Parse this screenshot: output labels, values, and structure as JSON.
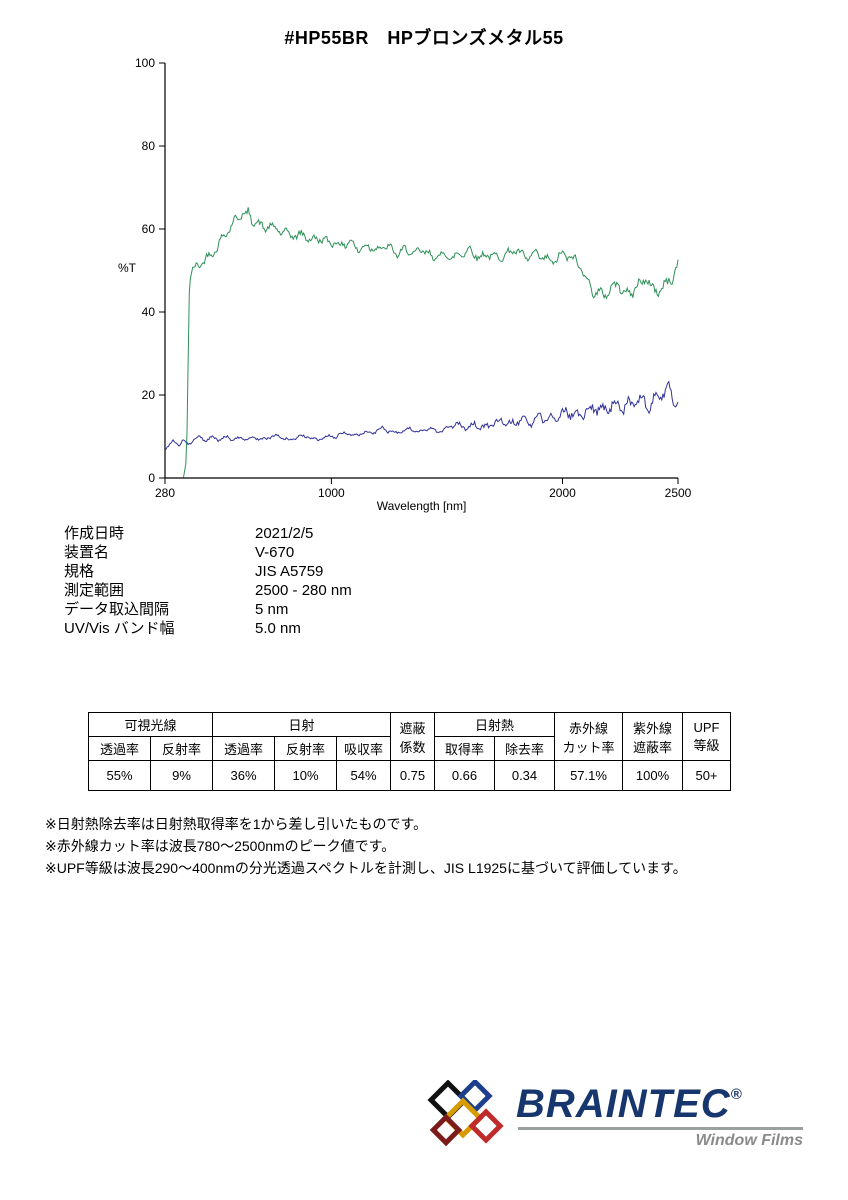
{
  "chart_data": {
    "type": "line",
    "title": "#HP55BR　HPブロンズメタル55",
    "xlabel": "Wavelength [nm]",
    "ylabel": "%T",
    "xlim": [
      280,
      2500
    ],
    "ylim": [
      0,
      100
    ],
    "x_ticks": [
      280,
      1000,
      2000,
      2500
    ],
    "y_ticks": [
      0,
      20,
      40,
      60,
      80,
      100
    ],
    "grid": false,
    "legend": "none",
    "series": [
      {
        "name": "transmittance",
        "color": "#2e9158",
        "points": [
          [
            360,
            0
          ],
          [
            372,
            4
          ],
          [
            378,
            18
          ],
          [
            382,
            38
          ],
          [
            386,
            47
          ],
          [
            392,
            49
          ],
          [
            400,
            50
          ],
          [
            420,
            51
          ],
          [
            440,
            52
          ],
          [
            460,
            53
          ],
          [
            480,
            54
          ],
          [
            500,
            55
          ],
          [
            520,
            57
          ],
          [
            540,
            59
          ],
          [
            560,
            60
          ],
          [
            580,
            62
          ],
          [
            600,
            63
          ],
          [
            615,
            64
          ],
          [
            628,
            63
          ],
          [
            640,
            64
          ],
          [
            655,
            62
          ],
          [
            670,
            62
          ],
          [
            690,
            61
          ],
          [
            710,
            60
          ],
          [
            730,
            61
          ],
          [
            750,
            60
          ],
          [
            770,
            60
          ],
          [
            790,
            59
          ],
          [
            820,
            59
          ],
          [
            850,
            58
          ],
          [
            880,
            59
          ],
          [
            910,
            57
          ],
          [
            940,
            58
          ],
          [
            970,
            57
          ],
          [
            1000,
            57
          ],
          [
            1040,
            56
          ],
          [
            1080,
            57
          ],
          [
            1120,
            55
          ],
          [
            1160,
            56
          ],
          [
            1200,
            55
          ],
          [
            1240,
            56
          ],
          [
            1280,
            54
          ],
          [
            1320,
            55
          ],
          [
            1360,
            54
          ],
          [
            1400,
            55
          ],
          [
            1440,
            53
          ],
          [
            1480,
            54
          ],
          [
            1520,
            53
          ],
          [
            1560,
            54
          ],
          [
            1600,
            55
          ],
          [
            1640,
            53
          ],
          [
            1680,
            54
          ],
          [
            1720,
            53
          ],
          [
            1760,
            54
          ],
          [
            1800,
            55
          ],
          [
            1840,
            53
          ],
          [
            1880,
            54
          ],
          [
            1920,
            53
          ],
          [
            1960,
            52
          ],
          [
            2000,
            54
          ],
          [
            2040,
            53
          ],
          [
            2080,
            51
          ],
          [
            2120,
            46
          ],
          [
            2160,
            44
          ],
          [
            2200,
            45
          ],
          [
            2240,
            47
          ],
          [
            2280,
            44
          ],
          [
            2320,
            46
          ],
          [
            2360,
            48
          ],
          [
            2400,
            45
          ],
          [
            2440,
            46
          ],
          [
            2470,
            48
          ],
          [
            2500,
            51
          ]
        ]
      },
      {
        "name": "reflectance",
        "color": "#32329b",
        "points": [
          [
            280,
            7
          ],
          [
            300,
            8
          ],
          [
            320,
            9
          ],
          [
            340,
            8
          ],
          [
            360,
            9
          ],
          [
            380,
            8
          ],
          [
            400,
            9
          ],
          [
            430,
            10
          ],
          [
            460,
            9
          ],
          [
            490,
            10
          ],
          [
            520,
            9
          ],
          [
            550,
            10
          ],
          [
            580,
            9
          ],
          [
            610,
            10
          ],
          [
            640,
            9
          ],
          [
            670,
            10
          ],
          [
            700,
            9
          ],
          [
            740,
            10
          ],
          [
            780,
            10
          ],
          [
            820,
            9
          ],
          [
            860,
            10
          ],
          [
            900,
            10
          ],
          [
            940,
            9
          ],
          [
            980,
            10
          ],
          [
            1020,
            10
          ],
          [
            1060,
            11
          ],
          [
            1100,
            10
          ],
          [
            1140,
            11
          ],
          [
            1180,
            11
          ],
          [
            1220,
            12
          ],
          [
            1260,
            11
          ],
          [
            1300,
            11
          ],
          [
            1340,
            12
          ],
          [
            1380,
            11
          ],
          [
            1420,
            12
          ],
          [
            1460,
            11
          ],
          [
            1500,
            12
          ],
          [
            1540,
            13
          ],
          [
            1580,
            12
          ],
          [
            1620,
            13
          ],
          [
            1660,
            12
          ],
          [
            1700,
            13
          ],
          [
            1740,
            14
          ],
          [
            1780,
            13
          ],
          [
            1820,
            14
          ],
          [
            1860,
            13
          ],
          [
            1900,
            15
          ],
          [
            1940,
            14
          ],
          [
            1980,
            15
          ],
          [
            2020,
            16
          ],
          [
            2060,
            15
          ],
          [
            2100,
            16
          ],
          [
            2140,
            17
          ],
          [
            2180,
            16
          ],
          [
            2220,
            18
          ],
          [
            2260,
            17
          ],
          [
            2300,
            18
          ],
          [
            2340,
            19
          ],
          [
            2380,
            17
          ],
          [
            2420,
            20
          ],
          [
            2460,
            21
          ],
          [
            2500,
            18
          ]
        ]
      }
    ]
  },
  "metadata": {
    "rows": [
      {
        "label": "作成日時",
        "value": "2021/2/5"
      },
      {
        "label": "装置名",
        "value": "V-670"
      },
      {
        "label": "規格",
        "value": "JIS A5759"
      },
      {
        "label": "測定範囲",
        "value": "2500 - 280 nm"
      },
      {
        "label": "データ取込間隔",
        "value": "5 nm"
      },
      {
        "label": "UV/Vis バンド幅",
        "value": "5.0 nm"
      }
    ]
  },
  "results_table": {
    "groups": {
      "visible": "可視光線",
      "solar": "日射",
      "shading": "遮蔽\n係数",
      "solar_heat": "日射熱",
      "infrared": "赤外線\nカット率",
      "ultraviolet": "紫外線\n遮蔽率",
      "upf": "UPF\n等級"
    },
    "subheaders": [
      "透過率",
      "反射率",
      "透過率",
      "反射率",
      "吸収率",
      "取得率",
      "除去率"
    ],
    "values": [
      "55%",
      "9%",
      "36%",
      "10%",
      "54%",
      "0.75",
      "0.66",
      "0.34",
      "57.1%",
      "100%",
      "50+"
    ]
  },
  "footnotes": [
    "※日射熱除去率は日射熱取得率を1から差し引いたものです。",
    "※赤外線カット率は波長780〜2500nmのピーク値です。",
    "※UPF等級は波長290〜400nmの分光透過スペクトルを計測し、JIS L1925に基づいて評価しています。"
  ],
  "logo": {
    "brand": "BRAINTEC",
    "registered": "®",
    "tagline": "Window Films"
  }
}
